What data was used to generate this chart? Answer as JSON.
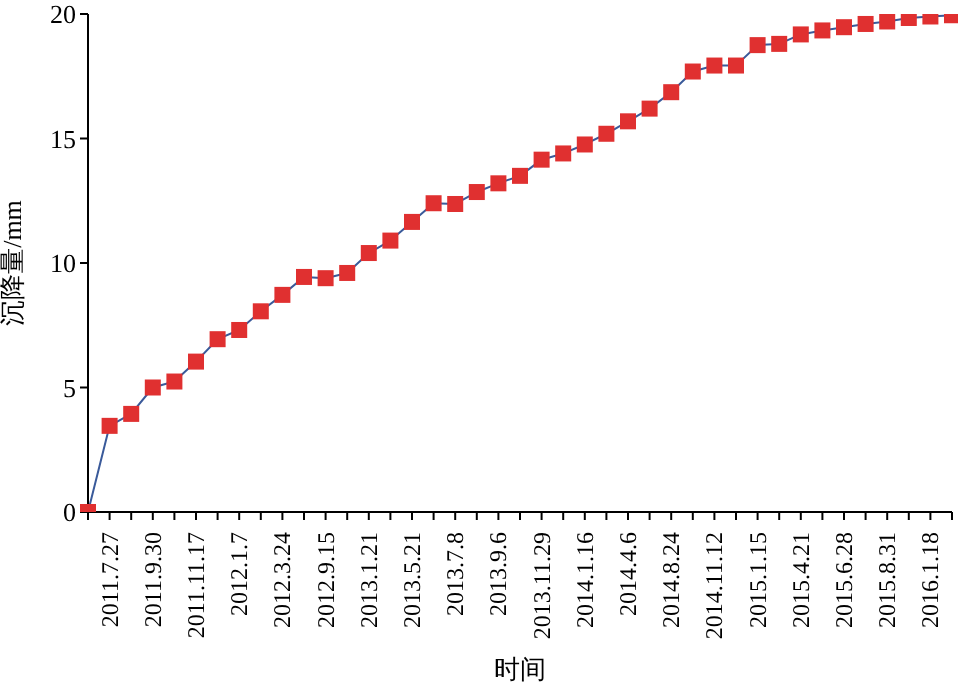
{
  "chart_data": {
    "type": "line",
    "xlabel": "时间",
    "ylabel": "沉降量/mm",
    "categories": [
      null,
      "2011.7.27",
      null,
      "2011.9.30",
      null,
      "2011.11.17",
      null,
      "2012.1.7",
      null,
      "2012.3.24",
      null,
      "2012.9.15",
      null,
      "2013.1.21",
      null,
      "2013.5.21",
      null,
      "2013.7.8",
      null,
      "2013.9.6",
      null,
      "2013.11.29",
      null,
      "2014.1.16",
      null,
      "2014.4.6",
      null,
      "2014.8.24",
      null,
      "2014.11.12",
      null,
      "2015.1.15",
      null,
      "2015.4.21",
      null,
      "2015.6.28",
      null,
      "2015.8.31",
      null,
      "2016.1.18",
      null
    ],
    "series": [
      {
        "color": "#e03030",
        "values": [
          0,
          3.46,
          3.94,
          5.0,
          5.24,
          6.04,
          6.94,
          7.31,
          8.06,
          8.72,
          9.44,
          9.39,
          9.6,
          10.4,
          10.9,
          11.65,
          12.4,
          12.37,
          12.85,
          13.2,
          13.5,
          14.15,
          14.4,
          14.76,
          15.19,
          15.69,
          16.2,
          16.86,
          17.69,
          17.93,
          17.93,
          18.75,
          18.8,
          19.18,
          19.34,
          19.47,
          19.6,
          19.7,
          19.84,
          19.9,
          19.95
        ]
      }
    ],
    "ylim": [
      0,
      20
    ],
    "yticks": [
      0,
      5,
      10,
      15,
      20
    ],
    "grid": false,
    "legend": false,
    "marker": "square",
    "line_style": "solid"
  }
}
